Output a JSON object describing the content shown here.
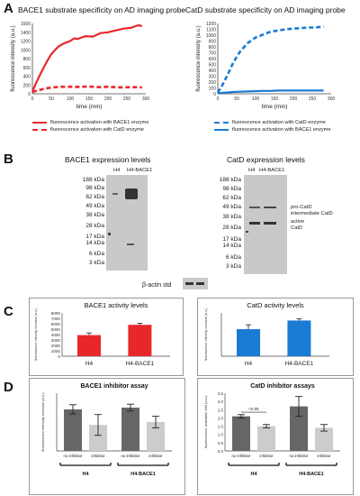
{
  "panels": {
    "A": {
      "letter": "A",
      "left": {
        "title": "BACE1 substrate specificity on AD imaging probe",
        "legend": [
          "fluorescence activation with BACE1 enzyme",
          "fluorescence activation with CatD enzyme"
        ]
      },
      "right": {
        "title": "CatD substrate specificity on AD imaging probe",
        "legend": [
          "fluorescence activation with CatD enzyme",
          "fluorescence activation with BACE1 enzyme"
        ]
      }
    },
    "B": {
      "letter": "B",
      "left_title": "BACE1 expression levels",
      "right_title": "CatD expression levels",
      "left_lanes": [
        "H4",
        "H4-BACE1"
      ],
      "right_lanes": [
        "H4",
        "H4-BACE1"
      ],
      "ladder": [
        "188 kDa",
        "98 kDa",
        "62 kDa",
        "49 kDa",
        "38 kDa",
        "28 kDa",
        "17 kDa",
        "14 kDa",
        "6 kDa",
        "3 kDa"
      ],
      "band_labels": [
        "pro-CatD",
        "intermediate CatD",
        "active",
        "CatD"
      ],
      "actin_label": "β-actin std"
    },
    "C": {
      "letter": "C"
    },
    "D": {
      "letter": "D",
      "note": "<0.05"
    },
    "colors": {
      "bace1_red": "#e8272b",
      "catd_blue": "#1a7bd4",
      "dark_bar": "#666666",
      "light_bar": "#cccccc"
    }
  },
  "chart_data": [
    {
      "id": "A-left",
      "type": "line",
      "title": "",
      "xlabel": "time (min)",
      "ylabel": "fluorescence intensity (a.u.)",
      "xlim": [
        0,
        300
      ],
      "ylim": [
        0,
        1600
      ],
      "x_ticks": [
        0,
        50,
        100,
        150,
        200,
        250,
        300
      ],
      "y_ticks": [
        0,
        200,
        400,
        600,
        800,
        1000,
        1200,
        1400,
        1600
      ],
      "series": [
        {
          "style": "solid",
          "color": "#e8272b",
          "x": [
            0,
            10,
            20,
            30,
            40,
            50,
            60,
            70,
            80,
            90,
            100,
            110,
            120,
            140,
            160,
            180,
            200,
            220,
            240,
            260,
            280,
            290
          ],
          "y": [
            50,
            250,
            430,
            600,
            760,
            900,
            1000,
            1080,
            1130,
            1170,
            1200,
            1260,
            1250,
            1310,
            1300,
            1380,
            1400,
            1440,
            1480,
            1500,
            1560,
            1540
          ]
        },
        {
          "style": "dashed",
          "color": "#e8272b",
          "x": [
            0,
            20,
            40,
            60,
            80,
            100,
            120,
            140,
            160,
            180,
            200,
            220,
            240,
            260,
            280,
            290
          ],
          "y": [
            40,
            90,
            130,
            150,
            160,
            160,
            155,
            165,
            160,
            150,
            160,
            150,
            145,
            150,
            150,
            145
          ]
        }
      ]
    },
    {
      "id": "A-right",
      "type": "line",
      "title": "",
      "xlabel": "time (min)",
      "ylabel": "fluorescence intensity (a.u.)",
      "xlim": [
        0,
        300
      ],
      "ylim": [
        0,
        1200
      ],
      "x_ticks": [
        0,
        50,
        100,
        150,
        200,
        250,
        300
      ],
      "y_ticks": [
        0,
        100,
        200,
        300,
        400,
        500,
        600,
        700,
        800,
        900,
        1000,
        1100,
        1200
      ],
      "series": [
        {
          "style": "dashed",
          "color": "#1a7bd4",
          "x": [
            0,
            10,
            20,
            30,
            40,
            50,
            60,
            70,
            80,
            100,
            120,
            140,
            160,
            180,
            200,
            220,
            240,
            260,
            280
          ],
          "y": [
            20,
            120,
            250,
            380,
            520,
            630,
            730,
            800,
            870,
            960,
            1010,
            1060,
            1080,
            1100,
            1110,
            1120,
            1130,
            1130,
            1150
          ]
        },
        {
          "style": "solid",
          "color": "#1a7bd4",
          "x": [
            0,
            20,
            40,
            60,
            80,
            100,
            120,
            140,
            160,
            180,
            200,
            220,
            240,
            260,
            280
          ],
          "y": [
            10,
            20,
            30,
            35,
            40,
            45,
            50,
            50,
            55,
            55,
            55,
            55,
            55,
            55,
            55
          ]
        }
      ]
    },
    {
      "id": "C-left",
      "type": "bar",
      "title": "BACE1 activity levels",
      "ylabel": "fluorescence intensity increase (a.u.)",
      "categories": [
        "H4",
        "H4-BACE1"
      ],
      "values": [
        3900,
        5800
      ],
      "errors": [
        400,
        300
      ],
      "color": "#e8272b",
      "ylim": [
        0,
        8000
      ],
      "y_ticks": [
        0,
        1000,
        2000,
        3000,
        4000,
        5000,
        6000,
        7000,
        8000
      ]
    },
    {
      "id": "C-right",
      "type": "bar",
      "title": "CatD activity levels",
      "ylabel": "fluorescence intensity increase (a.u.)",
      "categories": [
        "H4",
        "H4-BACE1"
      ],
      "values": [
        5000,
        6600
      ],
      "errors": [
        800,
        300
      ],
      "color": "#1a7bd4",
      "ylim": [
        0,
        8000
      ]
    },
    {
      "id": "D-left",
      "type": "bar",
      "title": "BACE1 inhibitor assay",
      "ylabel": "fluorescence intensity increase (a.u.)",
      "categories": [
        "no inhibitor",
        "inhibitor",
        "no inhibitor",
        "inhibitor"
      ],
      "groups": [
        "H4",
        "H4-BACE1"
      ],
      "values": [
        72,
        45,
        75,
        50
      ],
      "errors": [
        8,
        18,
        6,
        10
      ],
      "colors": [
        "#666666",
        "#cccccc",
        "#666666",
        "#cccccc"
      ],
      "ylim": [
        0,
        100
      ]
    },
    {
      "id": "D-right",
      "type": "bar",
      "title": "CatD inhibitor assays",
      "ylabel": "fluorescence activation fold (a.u.)",
      "categories": [
        "no inhibitor",
        "inhibitor",
        "no inhibitor",
        "inhibitor"
      ],
      "groups": [
        "H4",
        "H4-BACE1"
      ],
      "values": [
        2.1,
        1.5,
        2.7,
        1.4
      ],
      "errors": [
        0.1,
        0.1,
        0.6,
        0.2
      ],
      "colors": [
        "#666666",
        "#cccccc",
        "#666666",
        "#cccccc"
      ],
      "ylim": [
        0,
        3.5
      ],
      "y_ticks": [
        0,
        0.5,
        1.0,
        1.5,
        2.0,
        2.5,
        3.0,
        3.5
      ]
    }
  ]
}
